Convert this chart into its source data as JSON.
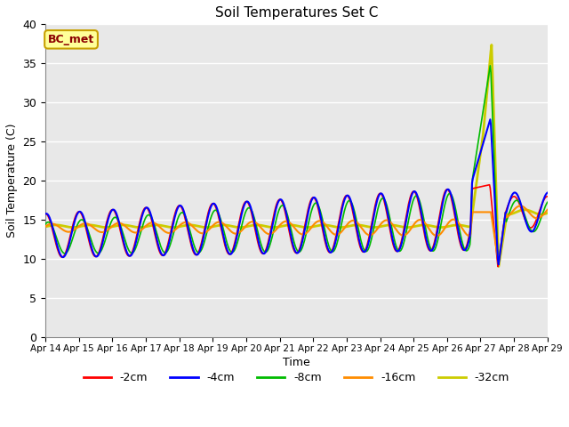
{
  "title": "Soil Temperatures Set C",
  "xlabel": "Time",
  "ylabel": "Soil Temperature (C)",
  "ylim": [
    0,
    40
  ],
  "yticks": [
    0,
    5,
    10,
    15,
    20,
    25,
    30,
    35,
    40
  ],
  "annotation_text": "BC_met",
  "annotation_color": "#8B0000",
  "annotation_bg": "#FFFF99",
  "annotation_border": "#C8A000",
  "series_labels": [
    "-2cm",
    "-4cm",
    "-8cm",
    "-16cm",
    "-32cm"
  ],
  "series_colors": [
    "#FF0000",
    "#0000FF",
    "#00BB00",
    "#FF8C00",
    "#CCCC00"
  ],
  "series_linewidths": [
    1.2,
    1.5,
    1.2,
    1.5,
    2.0
  ],
  "bg_color": "#E8E8E8",
  "days": [
    "Apr 14",
    "Apr 15",
    "Apr 16",
    "Apr 17",
    "Apr 18",
    "Apr 19",
    "Apr 20",
    "Apr 21",
    "Apr 22",
    "Apr 23",
    "Apr 24",
    "Apr 25",
    "Apr 26",
    "Apr 27",
    "Apr 28",
    "Apr 29"
  ]
}
